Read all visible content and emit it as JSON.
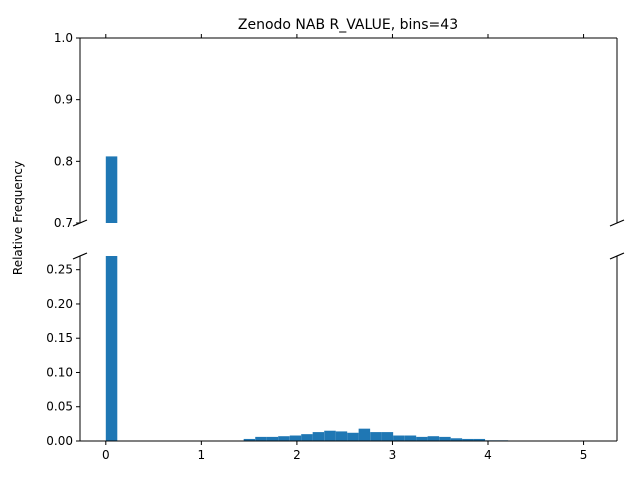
{
  "chart_data": {
    "type": "bar",
    "title": "Zenodo NAB R_VALUE, bins=43",
    "xlabel": "",
    "ylabel": "Relative Frequency",
    "bar_color": "#1f77b4",
    "grid": false,
    "broken_y_axis": true,
    "xlim": [
      -0.27,
      5.35
    ],
    "upper_ylim": [
      0.7,
      1.0
    ],
    "lower_ylim": [
      0.0,
      0.27
    ],
    "x_ticks": [
      0,
      1,
      2,
      3,
      4,
      5
    ],
    "upper_y_ticks": [
      "0.7",
      "0.8",
      "0.9",
      "1.0"
    ],
    "lower_y_ticks": [
      "0.00",
      "0.05",
      "0.10",
      "0.15",
      "0.20",
      "0.25"
    ],
    "bin_width": 0.1203,
    "bins": [
      {
        "x": 0.0,
        "y": 0.808
      },
      {
        "x": 1.443,
        "y": 0.003
      },
      {
        "x": 1.564,
        "y": 0.006
      },
      {
        "x": 1.684,
        "y": 0.006
      },
      {
        "x": 1.804,
        "y": 0.007
      },
      {
        "x": 1.925,
        "y": 0.008
      },
      {
        "x": 2.045,
        "y": 0.01
      },
      {
        "x": 2.165,
        "y": 0.013
      },
      {
        "x": 2.286,
        "y": 0.015
      },
      {
        "x": 2.406,
        "y": 0.014
      },
      {
        "x": 2.526,
        "y": 0.012
      },
      {
        "x": 2.646,
        "y": 0.018
      },
      {
        "x": 2.767,
        "y": 0.013
      },
      {
        "x": 2.887,
        "y": 0.013
      },
      {
        "x": 3.007,
        "y": 0.008
      },
      {
        "x": 3.128,
        "y": 0.008
      },
      {
        "x": 3.248,
        "y": 0.006
      },
      {
        "x": 3.368,
        "y": 0.007
      },
      {
        "x": 3.489,
        "y": 0.006
      },
      {
        "x": 3.609,
        "y": 0.004
      },
      {
        "x": 3.729,
        "y": 0.003
      },
      {
        "x": 3.849,
        "y": 0.003
      },
      {
        "x": 3.97,
        "y": 0.001
      },
      {
        "x": 4.09,
        "y": 0.001
      }
    ]
  }
}
